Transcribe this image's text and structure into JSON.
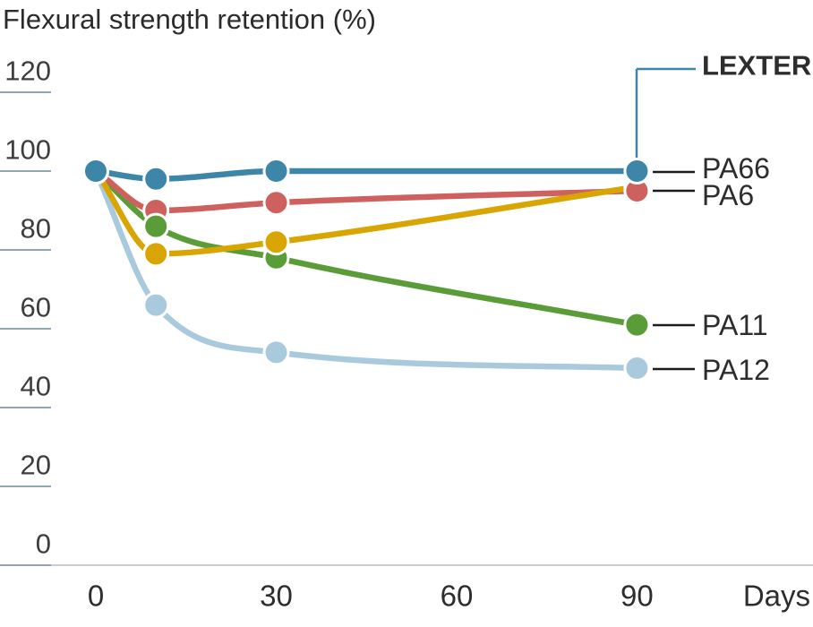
{
  "title": "Flexural strength retention (%)",
  "axes": {
    "x": {
      "ticks": [
        0,
        30,
        60,
        90
      ],
      "unit_label": "Days"
    },
    "y": {
      "ticks": [
        120,
        100,
        80,
        60,
        40,
        20,
        0
      ],
      "min": 0,
      "max": 120
    }
  },
  "colors": {
    "lexter_accent": "#3E86A8",
    "pa66_gold": "#D8A503",
    "pa6_red": "#CE615E",
    "pa11_green": "#5A9C38",
    "pa12_light_blue": "#A9CADD",
    "tick_line": "#8FA6AE",
    "axis_line": "#C9CED3",
    "label_text": "#2B2B2B",
    "leader_line": "#1C1C1C"
  },
  "chart_data": {
    "type": "line",
    "title": "Flexural strength retention (%)",
    "xlabel": "Days",
    "ylabel": "Flexural strength retention (%)",
    "x": [
      0,
      10,
      30,
      90
    ],
    "xticks": [
      0,
      30,
      60,
      90
    ],
    "ylim": [
      0,
      120
    ],
    "grid": "short tick dashes along left edge only",
    "legend_position": "direct labels at right edge with leader lines",
    "series": [
      {
        "name": "LEXTER",
        "label": "LEXTER",
        "color": "#3E86A8",
        "values": [
          100,
          98,
          100,
          100
        ],
        "emphasized": true
      },
      {
        "name": "PA66",
        "label": "PA66",
        "color": "#D8A503",
        "values": [
          100,
          79,
          82,
          96
        ]
      },
      {
        "name": "PA6",
        "label": "PA6",
        "color": "#CE615E",
        "values": [
          100,
          90,
          92,
          95
        ]
      },
      {
        "name": "PA11",
        "label": "PA11",
        "color": "#5A9C38",
        "values": [
          100,
          86,
          78,
          61
        ]
      },
      {
        "name": "PA12",
        "label": "PA12",
        "color": "#A9CADD",
        "values": [
          100,
          66,
          54,
          50
        ]
      }
    ]
  }
}
